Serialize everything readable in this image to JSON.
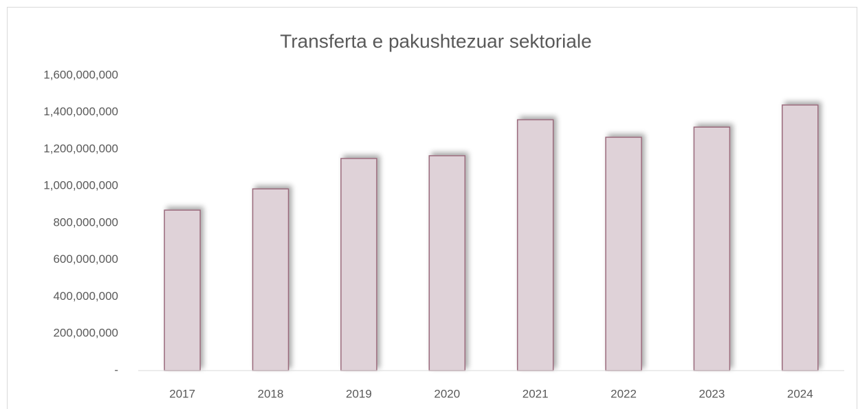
{
  "chart_data": {
    "type": "bar",
    "title": "Transferta e pakushtezuar sektoriale",
    "categories": [
      "2017",
      "2018",
      "2019",
      "2020",
      "2021",
      "2022",
      "2023",
      "2024"
    ],
    "values": [
      870000000,
      985000000,
      1150000000,
      1165000000,
      1360000000,
      1265000000,
      1320000000,
      1440000000
    ],
    "color": "#dfd2d8",
    "edge_color": "#9a6a7b",
    "ylim": [
      0,
      1600000000
    ],
    "yticks": [
      {
        "value": 0,
        "label": "-"
      },
      {
        "value": 200000000,
        "label": "200,000,000"
      },
      {
        "value": 400000000,
        "label": "400,000,000"
      },
      {
        "value": 600000000,
        "label": "600,000,000"
      },
      {
        "value": 800000000,
        "label": "800,000,000"
      },
      {
        "value": 1000000000,
        "label": "1,000,000,000"
      },
      {
        "value": 1200000000,
        "label": "1,200,000,000"
      },
      {
        "value": 1400000000,
        "label": "1,400,000,000"
      },
      {
        "value": 1600000000,
        "label": "1,600,000,000"
      }
    ],
    "grid": false
  }
}
